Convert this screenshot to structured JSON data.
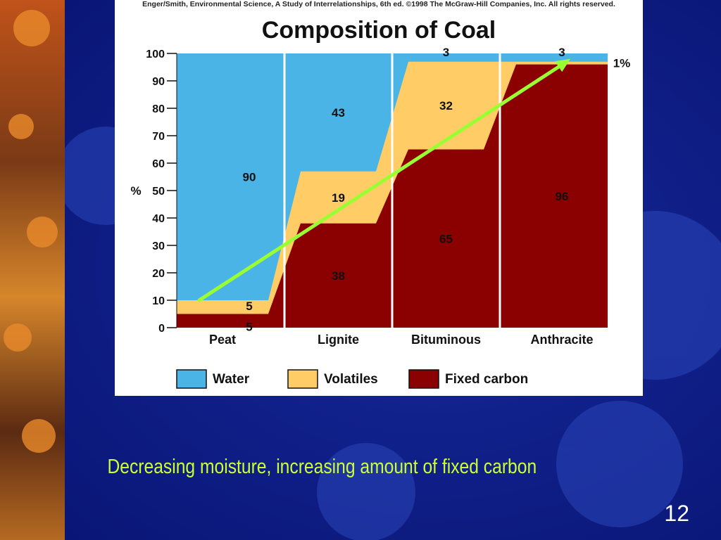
{
  "slide": {
    "caption": "Decreasing moisture, increasing amount of fixed carbon",
    "page_number": "12"
  },
  "chart_data": {
    "type": "bar",
    "stacked": true,
    "credit": "Enger/Smith, Environmental Science, A Study of Interrelationships, 6th ed. ©1998 The McGraw-Hill Companies, Inc. All rights reserved.",
    "title": "Composition of Coal",
    "ylabel": "%",
    "ylim": [
      0,
      100
    ],
    "yticks": [
      "0",
      "10",
      "20",
      "30",
      "40",
      "50",
      "60",
      "70",
      "80",
      "90",
      "100"
    ],
    "categories": [
      "Peat",
      "Lignite",
      "Bituminous",
      "Anthracite"
    ],
    "series": [
      {
        "name": "Fixed carbon",
        "color": "#8b0000",
        "values": [
          5,
          38,
          65,
          96
        ],
        "labels": [
          "5",
          "38",
          "65",
          "96"
        ]
      },
      {
        "name": "Volatiles",
        "color": "#ffcc66",
        "values": [
          5,
          19,
          32,
          1
        ],
        "labels": [
          "5",
          "19",
          "32",
          "1%"
        ]
      },
      {
        "name": "Water",
        "color": "#4ab4e6",
        "values": [
          90,
          43,
          3,
          3
        ],
        "labels": [
          "90",
          "43",
          "3",
          "3"
        ]
      }
    ],
    "legend_position": "bottom",
    "trend_arrow": {
      "color": "#99ff33",
      "from": [
        "Peat",
        10
      ],
      "to": [
        "Anthracite",
        98
      ]
    }
  }
}
